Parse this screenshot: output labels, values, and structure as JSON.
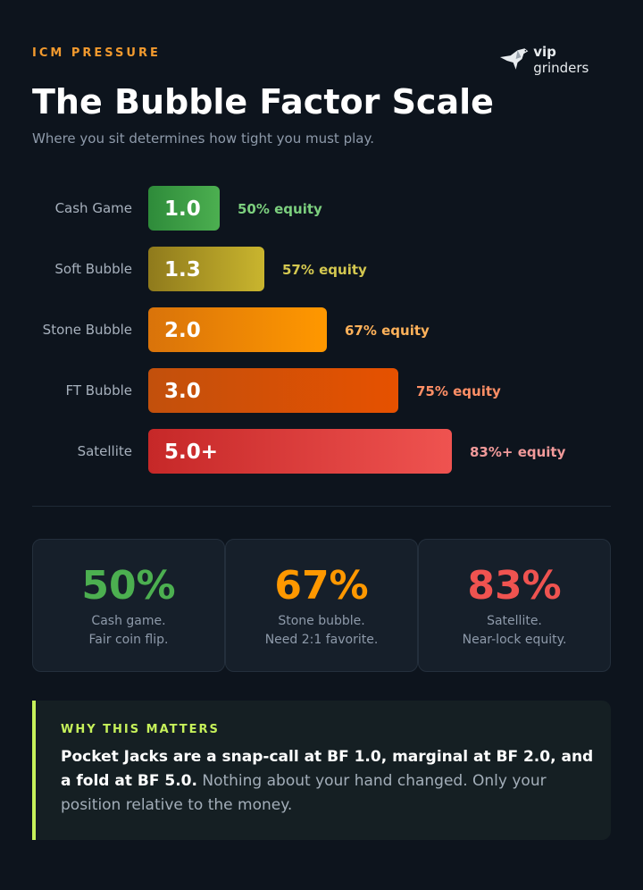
{
  "header": {
    "kicker": "ICM PRESSURE",
    "title": "The Bubble Factor Scale",
    "subtitle": "Where you sit determines how tight you must play.",
    "logo_strong": "vip",
    "logo_text": "grinders"
  },
  "chart_data": {
    "type": "bar",
    "orientation": "horizontal",
    "categories": [
      "Cash Game",
      "Soft Bubble",
      "Stone Bubble",
      "FT Bubble",
      "Satellite"
    ],
    "values": [
      1.0,
      1.3,
      2.0,
      3.0,
      5.0
    ],
    "value_labels": [
      "1.0",
      "1.3",
      "2.0",
      "3.0",
      "5.0+"
    ],
    "annotations": [
      "50% equity",
      "57% equity",
      "67% equity",
      "75% equity",
      "83%+ equity"
    ],
    "colors": [
      [
        "#2e8b3a",
        "#4caf50"
      ],
      [
        "#8f7a1c",
        "#c9b52e"
      ],
      [
        "#d9730a",
        "#ff9800"
      ],
      [
        "#c2500c",
        "#e65100"
      ],
      [
        "#c62828",
        "#ef5350"
      ]
    ],
    "annotation_colors": [
      "#7ccf7e",
      "#d4c850",
      "#ffb25a",
      "#ff8f66",
      "#f19a9a"
    ],
    "title": "",
    "xlabel": "",
    "ylabel": ""
  },
  "stats": [
    {
      "value": "50%",
      "line1": "Cash game.",
      "line2": "Fair coin flip.",
      "color": "#4caf50"
    },
    {
      "value": "67%",
      "line1": "Stone bubble.",
      "line2": "Need 2:1 favorite.",
      "color": "#ff9800"
    },
    {
      "value": "83%",
      "line1": "Satellite.",
      "line2": "Near-lock equity.",
      "color": "#ef5350"
    }
  ],
  "callout": {
    "label": "WHY THIS MATTERS",
    "bold_text": "Pocket Jacks are a snap-call at BF 1.0, marginal at BF 2.0, and a fold at BF 5.0.",
    "rest_text": " Nothing about your hand changed. Only your position relative to the money."
  }
}
